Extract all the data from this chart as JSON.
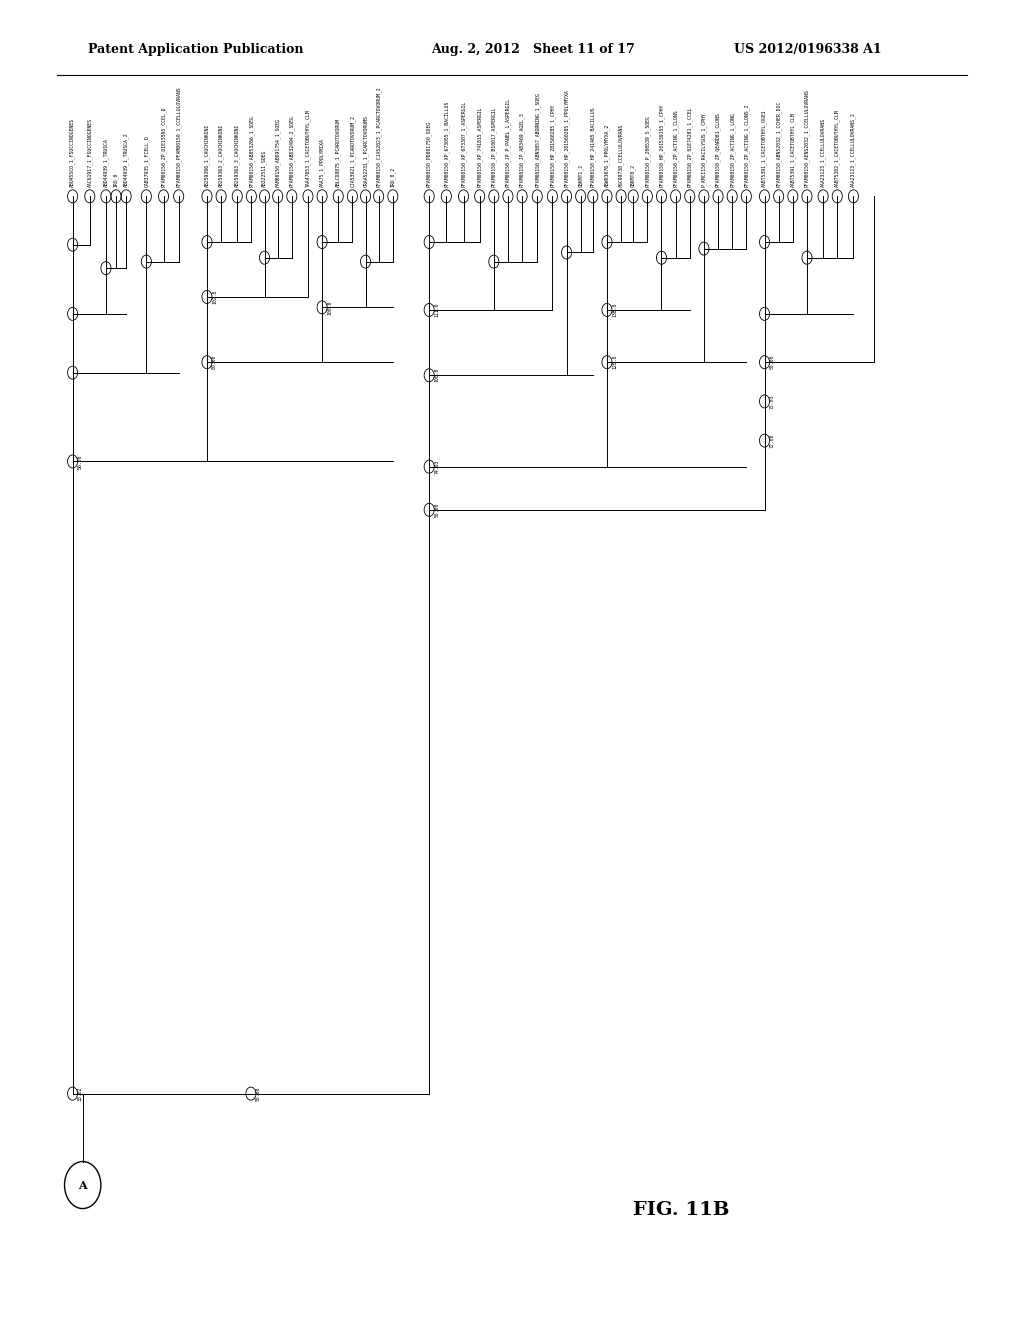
{
  "title": "FIG. 11B",
  "header_left": "Patent Application Publication",
  "header_mid": "Aug. 2, 2012   Sheet 11 of 17",
  "header_right": "US 2012/0196338 A1",
  "background": "#ffffff",
  "fig_label": "FIG. 11B",
  "circle_root": "A"
}
